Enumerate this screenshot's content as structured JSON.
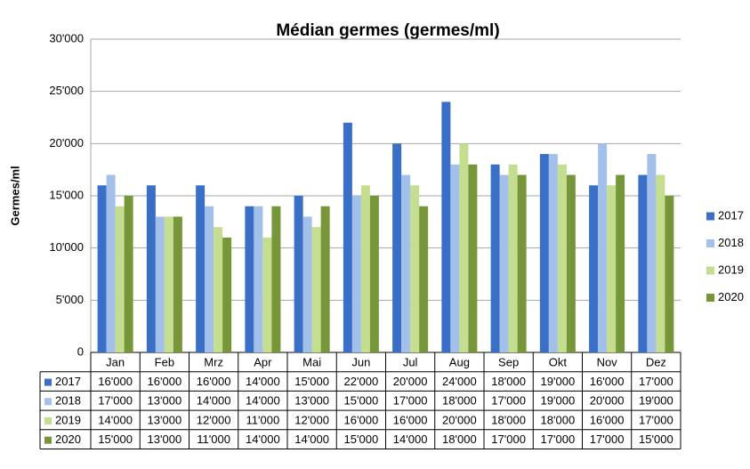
{
  "chart_data": {
    "type": "bar",
    "title": "Médian germes (germes/ml)",
    "y_label": "Germes/ml",
    "categories": [
      "Jan",
      "Feb",
      "Mrz",
      "Apr",
      "Mai",
      "Jun",
      "Jul",
      "Aug",
      "Sep",
      "Okt",
      "Nov",
      "Dez"
    ],
    "series": [
      {
        "name": "2017",
        "color": "#3a6fc7",
        "values": [
          16000,
          16000,
          16000,
          14000,
          15000,
          22000,
          20000,
          24000,
          18000,
          19000,
          16000,
          17000
        ],
        "value_labels": [
          "16'000",
          "16'000",
          "16'000",
          "14'000",
          "15'000",
          "22'000",
          "20'000",
          "24'000",
          "18'000",
          "19'000",
          "16'000",
          "17'000"
        ]
      },
      {
        "name": "2018",
        "color": "#a3c0ea",
        "values": [
          17000,
          13000,
          14000,
          14000,
          13000,
          15000,
          17000,
          18000,
          17000,
          19000,
          20000,
          19000
        ],
        "value_labels": [
          "17'000",
          "13'000",
          "14'000",
          "14'000",
          "13'000",
          "15'000",
          "17'000",
          "18'000",
          "17'000",
          "19'000",
          "20'000",
          "19'000"
        ]
      },
      {
        "name": "2019",
        "color": "#c5dd8e",
        "values": [
          14000,
          13000,
          12000,
          11000,
          12000,
          16000,
          16000,
          20000,
          18000,
          18000,
          16000,
          17000
        ],
        "value_labels": [
          "14'000",
          "13'000",
          "12'000",
          "11'000",
          "12'000",
          "16'000",
          "16'000",
          "20'000",
          "18'000",
          "18'000",
          "16'000",
          "17'000"
        ]
      },
      {
        "name": "2020",
        "color": "#77963a",
        "values": [
          15000,
          13000,
          11000,
          14000,
          14000,
          15000,
          14000,
          18000,
          17000,
          17000,
          17000,
          15000
        ],
        "value_labels": [
          "15'000",
          "13'000",
          "11'000",
          "14'000",
          "14'000",
          "15'000",
          "14'000",
          "18'000",
          "17'000",
          "17'000",
          "17'000",
          "15'000"
        ]
      }
    ],
    "ylim": [
      0,
      30000
    ],
    "yticks": [
      0,
      {
        "value": 5000,
        "label": "5'000"
      },
      {
        "value": 10000,
        "label": "10'000"
      },
      {
        "value": 15000,
        "label": "15'000"
      },
      {
        "value": 20000,
        "label": "20'000"
      },
      {
        "value": 25000,
        "label": "25'000"
      },
      {
        "value": 30000,
        "label": "30'000"
      }
    ],
    "grid": true,
    "legend": "right"
  }
}
